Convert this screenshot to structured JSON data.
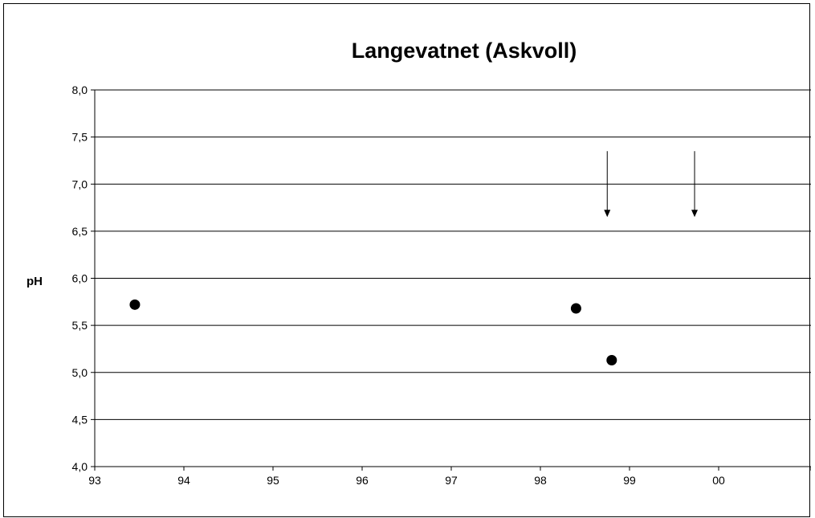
{
  "chart_data": {
    "type": "scatter",
    "title": "Langevatnet (Askvoll)",
    "xlabel": "",
    "ylabel": "pH",
    "x_tick_labels": [
      "93",
      "94",
      "95",
      "96",
      "97",
      "98",
      "99",
      "00"
    ],
    "y_tick_labels": [
      "4,0",
      "4,5",
      "5,0",
      "5,5",
      "6,0",
      "6,5",
      "7,0",
      "7,5",
      "8,0"
    ],
    "xlim": [
      1993,
      2001
    ],
    "ylim": [
      4.0,
      8.0
    ],
    "y_grid": true,
    "series": [
      {
        "points": [
          {
            "x": 1993.45,
            "y": 5.72
          },
          {
            "x": 1998.4,
            "y": 5.68
          },
          {
            "x": 1998.8,
            "y": 5.13
          }
        ],
        "marker": "filled-circle",
        "color": "#000000"
      }
    ],
    "annotations": [
      {
        "type": "down-arrow",
        "x": 1998.75,
        "y_from": 7.35,
        "y_to": 6.65
      },
      {
        "type": "down-arrow",
        "x": 1999.73,
        "y_from": 7.35,
        "y_to": 6.65
      }
    ]
  }
}
